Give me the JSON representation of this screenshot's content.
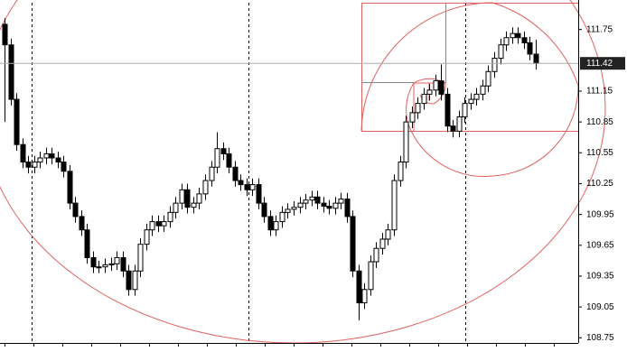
{
  "chart_data": {
    "type": "candlestick",
    "open": [
      111.8,
      111.6,
      111.07,
      110.63,
      110.46,
      110.41,
      110.46,
      110.5,
      110.54,
      110.5,
      110.46,
      110.37,
      110.06,
      109.93,
      109.8,
      109.53,
      109.44,
      109.44,
      109.46,
      109.47,
      109.53,
      109.4,
      109.22,
      109.4,
      109.66,
      109.8,
      109.88,
      109.84,
      109.88,
      109.97,
      110.06,
      110.19,
      110.02,
      110.06,
      110.15,
      110.28,
      110.41,
      110.59,
      110.54,
      110.41,
      110.28,
      110.24,
      110.19,
      110.24,
      110.06,
      109.93,
      109.8,
      109.88,
      109.97,
      110.0,
      110.02,
      110.06,
      110.09,
      110.12,
      110.06,
      110.03,
      110.01,
      110.06,
      110.1,
      109.93,
      109.4,
      109.09,
      109.22,
      109.49,
      109.62,
      109.71,
      109.8,
      110.28,
      110.46,
      110.85,
      110.94,
      111.03,
      111.12,
      111.16,
      111.25,
      111.12,
      110.81,
      110.76,
      110.9,
      111.03,
      111.07,
      111.12,
      111.2,
      111.34,
      111.47,
      111.6,
      111.67,
      111.71,
      111.67,
      111.62,
      111.51
    ],
    "high": [
      111.86,
      111.66,
      111.13,
      110.69,
      110.52,
      110.52,
      110.56,
      110.6,
      110.6,
      110.56,
      110.52,
      110.43,
      110.12,
      109.99,
      109.86,
      109.59,
      109.5,
      109.52,
      109.53,
      109.59,
      109.59,
      109.46,
      109.46,
      109.72,
      109.86,
      109.94,
      109.94,
      109.94,
      110.03,
      110.12,
      110.25,
      110.25,
      110.12,
      110.21,
      110.34,
      110.47,
      110.75,
      110.65,
      110.6,
      110.47,
      110.34,
      110.3,
      110.3,
      110.3,
      110.12,
      109.99,
      109.94,
      110.03,
      110.06,
      110.08,
      110.12,
      110.15,
      110.18,
      110.18,
      110.12,
      110.09,
      110.12,
      110.16,
      110.16,
      109.99,
      109.46,
      109.28,
      109.55,
      109.68,
      109.77,
      109.86,
      110.34,
      110.52,
      110.91,
      111.0,
      111.09,
      111.18,
      111.22,
      111.31,
      111.41,
      111.18,
      110.87,
      110.96,
      111.09,
      111.13,
      111.18,
      111.26,
      111.4,
      111.53,
      111.66,
      111.73,
      111.77,
      111.77,
      111.73,
      111.68,
      111.65
    ],
    "low": [
      110.85,
      111.01,
      110.57,
      110.4,
      110.35,
      110.35,
      110.4,
      110.44,
      110.44,
      110.4,
      110.31,
      110.0,
      109.87,
      109.74,
      109.47,
      109.38,
      109.38,
      109.38,
      109.4,
      109.41,
      109.34,
      109.16,
      109.16,
      109.34,
      109.6,
      109.74,
      109.78,
      109.78,
      109.82,
      109.91,
      110.0,
      109.96,
      109.96,
      110.0,
      110.09,
      110.22,
      110.35,
      110.48,
      110.35,
      110.22,
      110.18,
      110.13,
      110.13,
      110.0,
      109.87,
      109.74,
      109.74,
      109.82,
      109.91,
      109.94,
      109.96,
      110.0,
      110.03,
      110.0,
      109.97,
      109.95,
      109.95,
      110.0,
      109.87,
      109.34,
      108.92,
      109.03,
      109.16,
      109.43,
      109.56,
      109.65,
      109.74,
      110.22,
      110.4,
      110.79,
      110.88,
      110.97,
      111.06,
      111.1,
      111.06,
      110.75,
      110.7,
      110.7,
      110.84,
      110.97,
      111.01,
      111.06,
      111.14,
      111.28,
      111.41,
      111.54,
      111.61,
      111.61,
      111.56,
      111.45,
      111.36
    ],
    "close": [
      111.6,
      111.07,
      110.63,
      110.46,
      110.41,
      110.46,
      110.5,
      110.54,
      110.5,
      110.46,
      110.37,
      110.06,
      109.93,
      109.8,
      109.53,
      109.44,
      109.44,
      109.46,
      109.47,
      109.53,
      109.4,
      109.22,
      109.4,
      109.66,
      109.8,
      109.88,
      109.84,
      109.88,
      109.97,
      110.06,
      110.19,
      110.02,
      110.06,
      110.15,
      110.28,
      110.41,
      110.59,
      110.54,
      110.41,
      110.28,
      110.24,
      110.19,
      110.24,
      110.06,
      109.93,
      109.8,
      109.88,
      109.97,
      110.0,
      110.02,
      110.06,
      110.09,
      110.12,
      110.06,
      110.03,
      110.01,
      110.06,
      110.1,
      109.93,
      109.4,
      109.09,
      109.22,
      109.49,
      109.62,
      109.71,
      109.8,
      110.28,
      110.46,
      110.85,
      110.94,
      111.03,
      111.12,
      111.16,
      111.25,
      111.12,
      110.81,
      110.76,
      110.9,
      111.03,
      111.07,
      111.12,
      111.2,
      111.34,
      111.47,
      111.6,
      111.67,
      111.71,
      111.67,
      111.62,
      111.51,
      111.42
    ],
    "up_color": "#ffffff",
    "down_color": "#000000",
    "ylim": [
      108.7,
      112.01
    ],
    "yticks": [
      111.75,
      111.15,
      110.85,
      110.55,
      110.25,
      109.95,
      109.65,
      109.35,
      109.05,
      108.75
    ],
    "current_price": 111.42
  }
}
